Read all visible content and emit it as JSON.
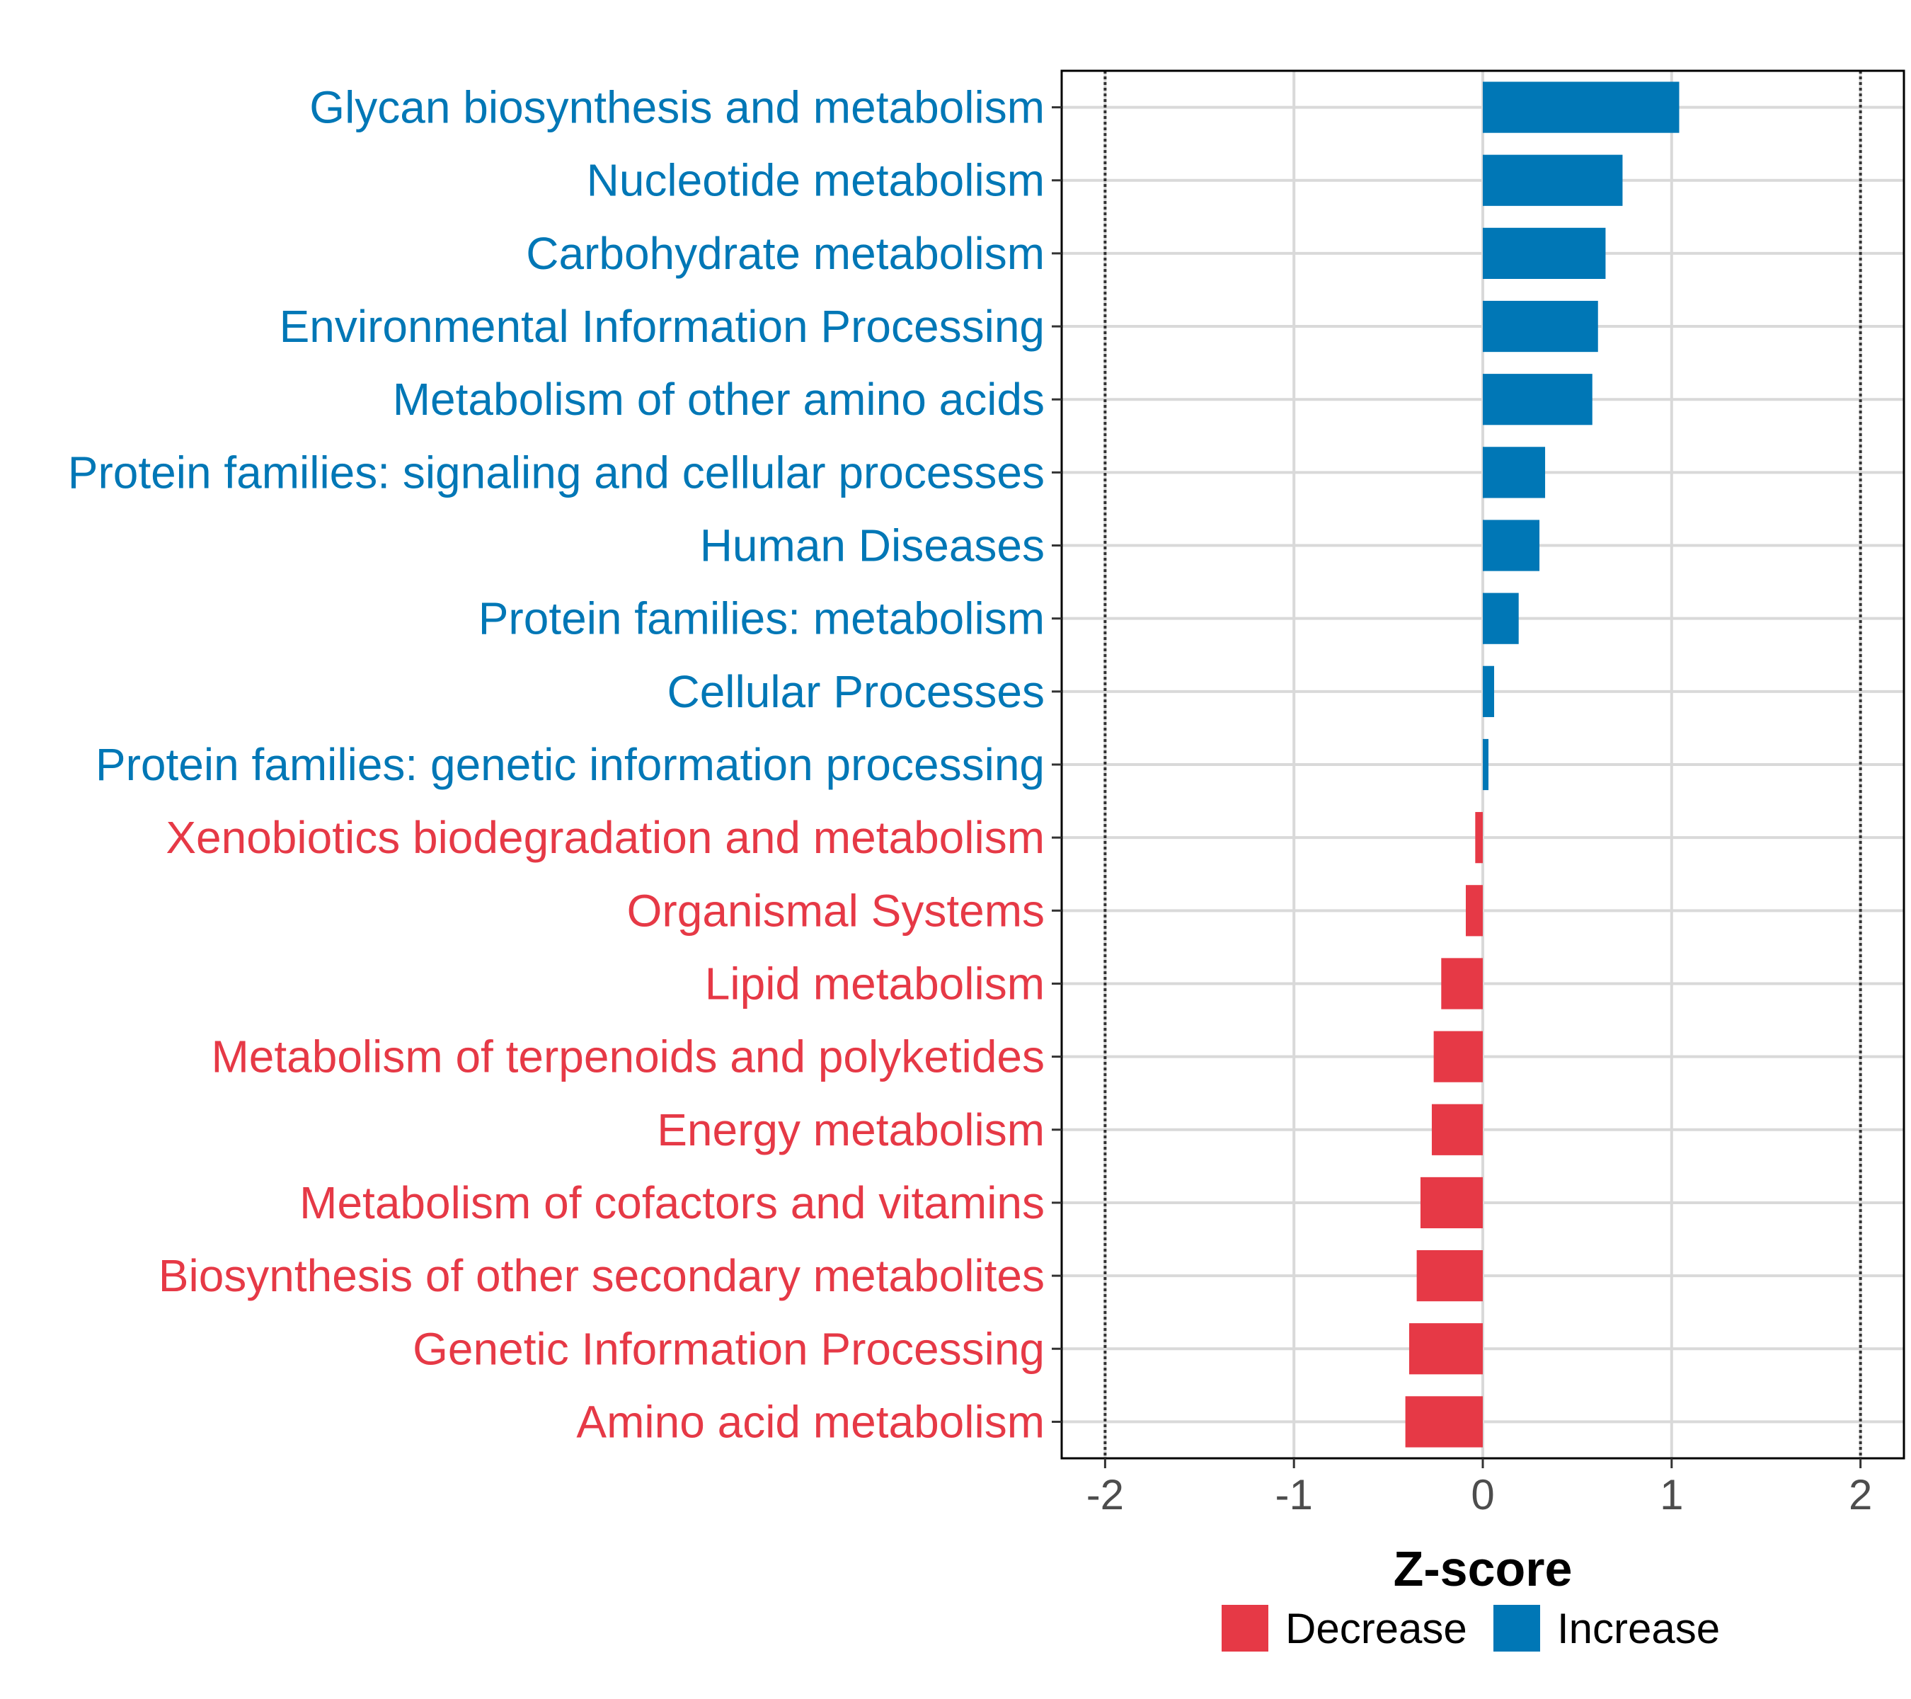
{
  "chart_data": {
    "type": "bar",
    "orientation": "horizontal",
    "categories": [
      "Glycan biosynthesis and metabolism",
      "Nucleotide metabolism",
      "Carbohydrate metabolism",
      "Environmental Information Processing",
      "Metabolism of other amino acids",
      "Protein families: signaling and cellular processes",
      "Human Diseases",
      "Protein families: metabolism",
      "Cellular Processes",
      "Protein families: genetic information processing",
      "Xenobiotics biodegradation and metabolism",
      "Organismal Systems",
      "Lipid metabolism",
      "Metabolism of terpenoids and polyketides",
      "Energy metabolism",
      "Metabolism of cofactors and vitamins",
      "Biosynthesis of other secondary metabolites",
      "Genetic Information Processing",
      "Amino acid metabolism"
    ],
    "values": [
      1.04,
      0.74,
      0.65,
      0.61,
      0.58,
      0.33,
      0.3,
      0.19,
      0.06,
      0.03,
      -0.04,
      -0.09,
      -0.22,
      -0.26,
      -0.27,
      -0.33,
      -0.35,
      -0.39,
      -0.41
    ],
    "groups": [
      "Increase",
      "Increase",
      "Increase",
      "Increase",
      "Increase",
      "Increase",
      "Increase",
      "Increase",
      "Increase",
      "Increase",
      "Decrease",
      "Decrease",
      "Decrease",
      "Decrease",
      "Decrease",
      "Decrease",
      "Decrease",
      "Decrease",
      "Decrease"
    ],
    "xlabel": "Z-score",
    "ylabel": "",
    "xlim": [
      -2.23,
      2.23
    ],
    "xticks": [
      -2,
      -1,
      0,
      1,
      2
    ],
    "xtick_labels": [
      "-2",
      "-1",
      "0",
      "1",
      "2"
    ],
    "reference_lines": [
      -2,
      2
    ],
    "grid": true,
    "legend": {
      "position": "bottom",
      "entries": [
        {
          "label": "Decrease",
          "color": "#e63946"
        },
        {
          "label": "Increase",
          "color": "#0077b6"
        }
      ]
    },
    "colors": {
      "Decrease": "#e63946",
      "Increase": "#0077b6"
    }
  }
}
